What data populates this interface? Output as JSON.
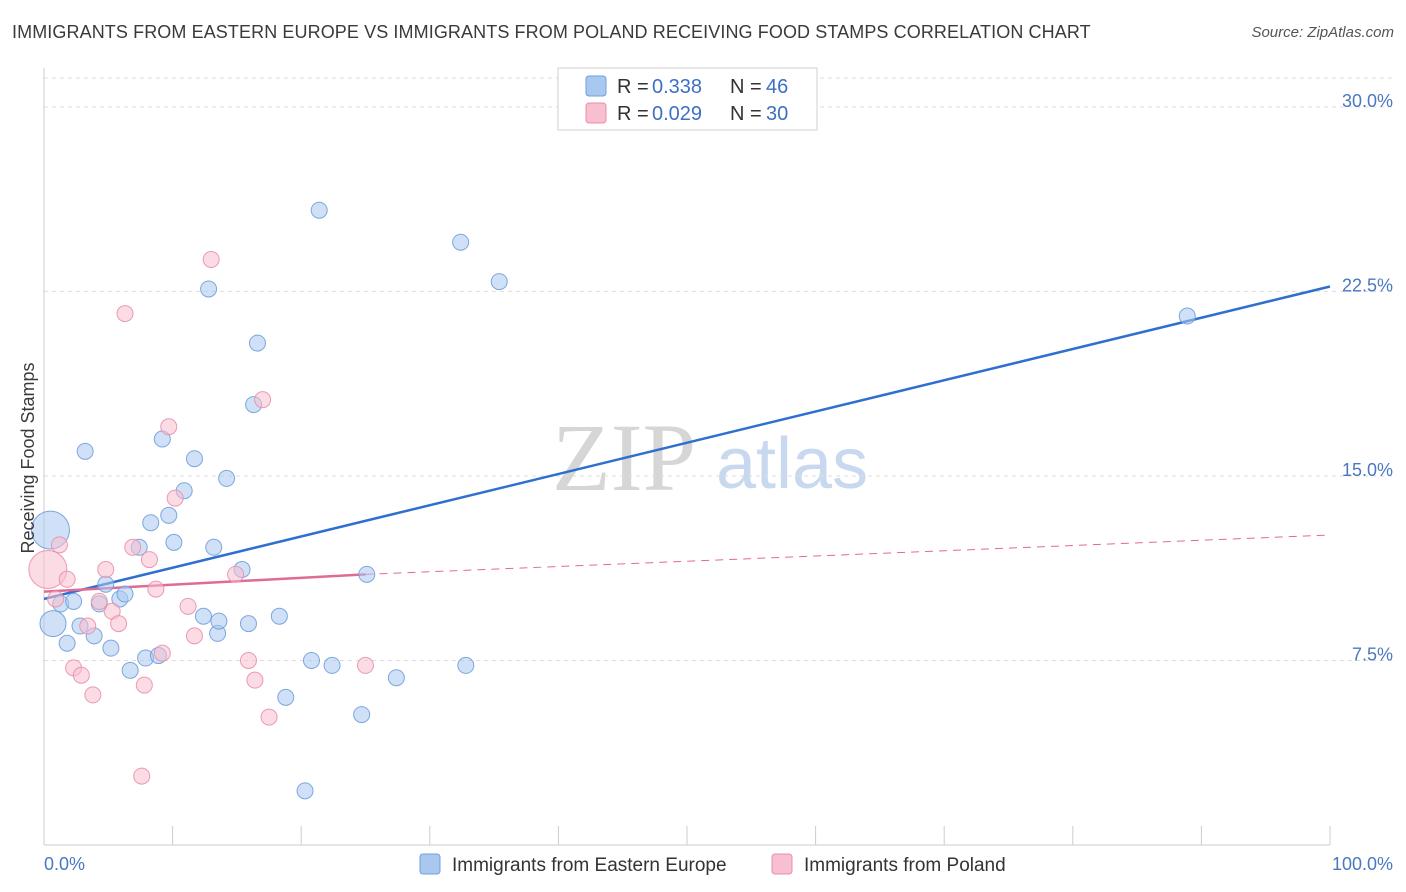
{
  "header": {
    "title": "IMMIGRANTS FROM EASTERN EUROPE VS IMMIGRANTS FROM POLAND RECEIVING FOOD STAMPS CORRELATION CHART",
    "source": "Source: ZipAtlas.com"
  },
  "watermark": {
    "zip": "ZIP",
    "atlas": "atlas"
  },
  "colors": {
    "blue_fill": "#a9c8f0",
    "blue_stroke": "#6f9fdc",
    "blue_line": "#2f6fcf",
    "pink_fill": "#f7bfd0",
    "pink_stroke": "#ea8fab",
    "pink_line": "#e06b93",
    "grid": "#dddddd",
    "axis": "#cccccc",
    "tick_text": "#4a78c0"
  },
  "legend": {
    "rows": [
      {
        "r_label": "R =",
        "r_value": "0.338",
        "n_label": "N =",
        "n_value": "46"
      },
      {
        "r_label": "R =",
        "r_value": "0.029",
        "n_label": "N =",
        "n_value": "30"
      }
    ]
  },
  "chart_data": {
    "type": "scatter",
    "title": "IMMIGRANTS FROM EASTERN EUROPE VS IMMIGRANTS FROM POLAND RECEIVING FOOD STAMPS CORRELATION CHART",
    "xlabel": "",
    "ylabel": "Receiving Food Stamps",
    "xlim": [
      0,
      100
    ],
    "ylim": [
      0,
      31.5
    ],
    "x_tick_labels": [
      "0.0%",
      "100.0%"
    ],
    "y_ticks": [
      7.5,
      15.0,
      22.5,
      30.0
    ],
    "y_tick_labels": [
      "7.5%",
      "15.0%",
      "22.5%",
      "30.0%"
    ],
    "grid": true,
    "legend_position": "top-center",
    "series": [
      {
        "name": "Immigrants from Eastern Europe",
        "color": "blue",
        "r": 0.338,
        "n": 46,
        "trend": {
          "x": [
            0,
            100
          ],
          "y": [
            10.0,
            22.7
          ],
          "style": "solid"
        },
        "points": [
          {
            "x": 0.5,
            "y": 12.8,
            "s": 3
          },
          {
            "x": 0.7,
            "y": 9.0,
            "s": 2
          },
          {
            "x": 1.3,
            "y": 9.8,
            "s": 1
          },
          {
            "x": 1.8,
            "y": 8.2,
            "s": 1
          },
          {
            "x": 2.3,
            "y": 9.9,
            "s": 1
          },
          {
            "x": 2.8,
            "y": 8.9,
            "s": 1
          },
          {
            "x": 3.2,
            "y": 16.0,
            "s": 1
          },
          {
            "x": 3.9,
            "y": 8.5,
            "s": 1
          },
          {
            "x": 4.3,
            "y": 9.8,
            "s": 1
          },
          {
            "x": 4.8,
            "y": 10.6,
            "s": 1
          },
          {
            "x": 5.2,
            "y": 8.0,
            "s": 1
          },
          {
            "x": 5.9,
            "y": 10.0,
            "s": 1
          },
          {
            "x": 6.3,
            "y": 10.2,
            "s": 1
          },
          {
            "x": 6.7,
            "y": 7.1,
            "s": 1
          },
          {
            "x": 7.4,
            "y": 12.1,
            "s": 1
          },
          {
            "x": 7.9,
            "y": 7.6,
            "s": 1
          },
          {
            "x": 8.3,
            "y": 13.1,
            "s": 1
          },
          {
            "x": 8.9,
            "y": 7.7,
            "s": 1
          },
          {
            "x": 9.2,
            "y": 16.5,
            "s": 1
          },
          {
            "x": 9.7,
            "y": 13.4,
            "s": 1
          },
          {
            "x": 10.1,
            "y": 12.3,
            "s": 1
          },
          {
            "x": 10.9,
            "y": 14.4,
            "s": 1
          },
          {
            "x": 11.7,
            "y": 15.7,
            "s": 1
          },
          {
            "x": 12.4,
            "y": 9.3,
            "s": 1
          },
          {
            "x": 12.8,
            "y": 22.6,
            "s": 1
          },
          {
            "x": 13.2,
            "y": 12.1,
            "s": 1
          },
          {
            "x": 13.5,
            "y": 8.6,
            "s": 1
          },
          {
            "x": 13.6,
            "y": 9.1,
            "s": 1
          },
          {
            "x": 14.2,
            "y": 14.9,
            "s": 1
          },
          {
            "x": 15.4,
            "y": 11.2,
            "s": 1
          },
          {
            "x": 15.9,
            "y": 9.0,
            "s": 1
          },
          {
            "x": 16.3,
            "y": 17.9,
            "s": 1
          },
          {
            "x": 16.6,
            "y": 20.4,
            "s": 1
          },
          {
            "x": 18.3,
            "y": 9.3,
            "s": 1
          },
          {
            "x": 18.8,
            "y": 6.0,
            "s": 1
          },
          {
            "x": 20.3,
            "y": 2.2,
            "s": 1
          },
          {
            "x": 20.8,
            "y": 7.5,
            "s": 1
          },
          {
            "x": 21.4,
            "y": 25.8,
            "s": 1
          },
          {
            "x": 22.4,
            "y": 7.3,
            "s": 1
          },
          {
            "x": 24.7,
            "y": 5.3,
            "s": 1
          },
          {
            "x": 25.1,
            "y": 11.0,
            "s": 1
          },
          {
            "x": 27.4,
            "y": 6.8,
            "s": 1
          },
          {
            "x": 32.4,
            "y": 24.5,
            "s": 1
          },
          {
            "x": 32.8,
            "y": 7.3,
            "s": 1
          },
          {
            "x": 35.4,
            "y": 22.9,
            "s": 1
          },
          {
            "x": 88.9,
            "y": 21.5,
            "s": 1
          }
        ]
      },
      {
        "name": "Immigrants from Poland",
        "color": "pink",
        "r": 0.029,
        "n": 30,
        "trend": {
          "x": [
            0,
            25
          ],
          "y": [
            10.3,
            11.0
          ],
          "style": "solid",
          "dashed_to": {
            "x": 100,
            "y": 12.6
          }
        },
        "points": [
          {
            "x": 0.3,
            "y": 11.2,
            "s": 3
          },
          {
            "x": 0.9,
            "y": 10.0,
            "s": 1
          },
          {
            "x": 1.2,
            "y": 12.2,
            "s": 1
          },
          {
            "x": 1.8,
            "y": 10.8,
            "s": 1
          },
          {
            "x": 2.3,
            "y": 7.2,
            "s": 1
          },
          {
            "x": 2.9,
            "y": 6.9,
            "s": 1
          },
          {
            "x": 3.4,
            "y": 8.9,
            "s": 1
          },
          {
            "x": 3.8,
            "y": 6.1,
            "s": 1
          },
          {
            "x": 4.3,
            "y": 9.9,
            "s": 1
          },
          {
            "x": 4.8,
            "y": 11.2,
            "s": 1
          },
          {
            "x": 5.3,
            "y": 9.5,
            "s": 1
          },
          {
            "x": 5.8,
            "y": 9.0,
            "s": 1
          },
          {
            "x": 6.3,
            "y": 21.6,
            "s": 1
          },
          {
            "x": 6.9,
            "y": 12.1,
            "s": 1
          },
          {
            "x": 7.6,
            "y": 2.8,
            "s": 1
          },
          {
            "x": 7.8,
            "y": 6.5,
            "s": 1
          },
          {
            "x": 8.2,
            "y": 11.6,
            "s": 1
          },
          {
            "x": 8.7,
            "y": 10.4,
            "s": 1
          },
          {
            "x": 9.2,
            "y": 7.8,
            "s": 1
          },
          {
            "x": 9.7,
            "y": 17.0,
            "s": 1
          },
          {
            "x": 10.2,
            "y": 14.1,
            "s": 1
          },
          {
            "x": 11.2,
            "y": 9.7,
            "s": 1
          },
          {
            "x": 11.7,
            "y": 8.5,
            "s": 1
          },
          {
            "x": 13.0,
            "y": 23.8,
            "s": 1
          },
          {
            "x": 14.9,
            "y": 11.0,
            "s": 1
          },
          {
            "x": 15.9,
            "y": 7.5,
            "s": 1
          },
          {
            "x": 16.4,
            "y": 6.7,
            "s": 1
          },
          {
            "x": 17.0,
            "y": 18.1,
            "s": 1
          },
          {
            "x": 17.5,
            "y": 5.2,
            "s": 1
          },
          {
            "x": 25.0,
            "y": 7.3,
            "s": 1
          }
        ]
      }
    ]
  },
  "bottom_legend": {
    "items": [
      {
        "label": "Immigrants from Eastern Europe"
      },
      {
        "label": "Immigrants from Poland"
      }
    ]
  }
}
